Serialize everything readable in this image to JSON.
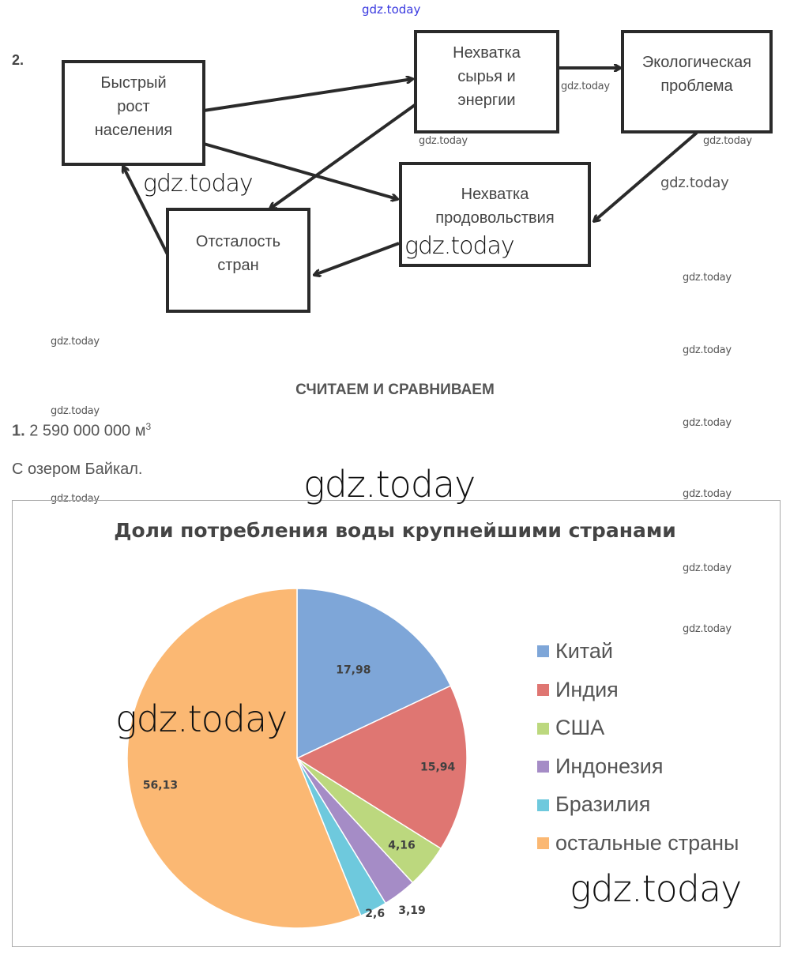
{
  "watermark_top": "gdz.today",
  "watermark": "gdz.today",
  "task2": {
    "number": "2.",
    "boxes": {
      "growth": "Быстрый\nрост\nнаселения",
      "raw": "Нехватка\nсырья и\nэнергии",
      "eco": "Экологическая\nпроблема",
      "food": "Нехватка\nпродовольствия",
      "backward": "Отсталость\nстран"
    }
  },
  "section_title": "СЧИТАЕМ И СРАВНИВАЕМ",
  "answer1": {
    "number": "1.",
    "value": "2 590 000 000 м",
    "sup": "3"
  },
  "answer1_text": "С озером Байкал.",
  "chart_data": {
    "type": "pie",
    "title": "Доли потребления воды крупнейшими странами",
    "categories": [
      "Китай",
      "Индия",
      "США",
      "Индонезия",
      "Бразилия",
      "остальные страны"
    ],
    "values": [
      17.98,
      15.94,
      4.16,
      3.19,
      2.6,
      56.13
    ],
    "labels": [
      "17,98",
      "15,94",
      "4,16",
      "3,19",
      "2,6",
      "56,13"
    ],
    "colors": [
      "#7ea6d8",
      "#df7672",
      "#bcd87e",
      "#a58cc6",
      "#6ec9dd",
      "#fbb873"
    ],
    "legend_position": "right"
  }
}
